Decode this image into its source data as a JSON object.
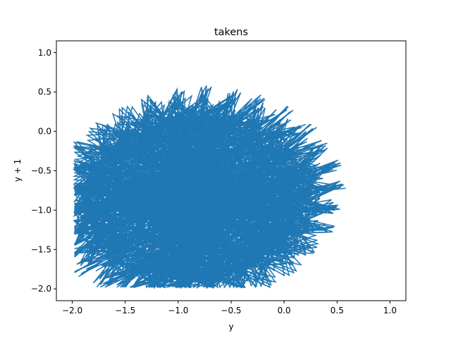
{
  "chart_data": {
    "type": "line",
    "title": "takens",
    "xlabel": "y",
    "ylabel": "y + 1",
    "xlim": [
      -2.15,
      1.15
    ],
    "ylim": [
      -2.15,
      1.15
    ],
    "xticks": [
      -2.0,
      -1.5,
      -1.0,
      -0.5,
      0.0,
      0.5,
      1.0
    ],
    "yticks": [
      -2.0,
      -1.5,
      -1.0,
      -0.5,
      0.0,
      0.5,
      1.0
    ],
    "xtick_labels": [
      "−2.0",
      "−1.5",
      "−1.0",
      "−0.5",
      "0.0",
      "0.5",
      "1.0"
    ],
    "ytick_labels": [
      "−2.0",
      "−1.5",
      "−1.0",
      "−0.5",
      "0.0",
      "0.5",
      "1.0"
    ],
    "grid": false,
    "series": [
      {
        "color": "#1f77b4",
        "description_of_curve": "x(t) = cos(t) + cos(9.7 t) / 2 - 0.5 ; y(t) = x(t + lag) ; dense Takens delay embedding of a quasi-periodic signal",
        "points_count": 3000
      }
    ]
  }
}
